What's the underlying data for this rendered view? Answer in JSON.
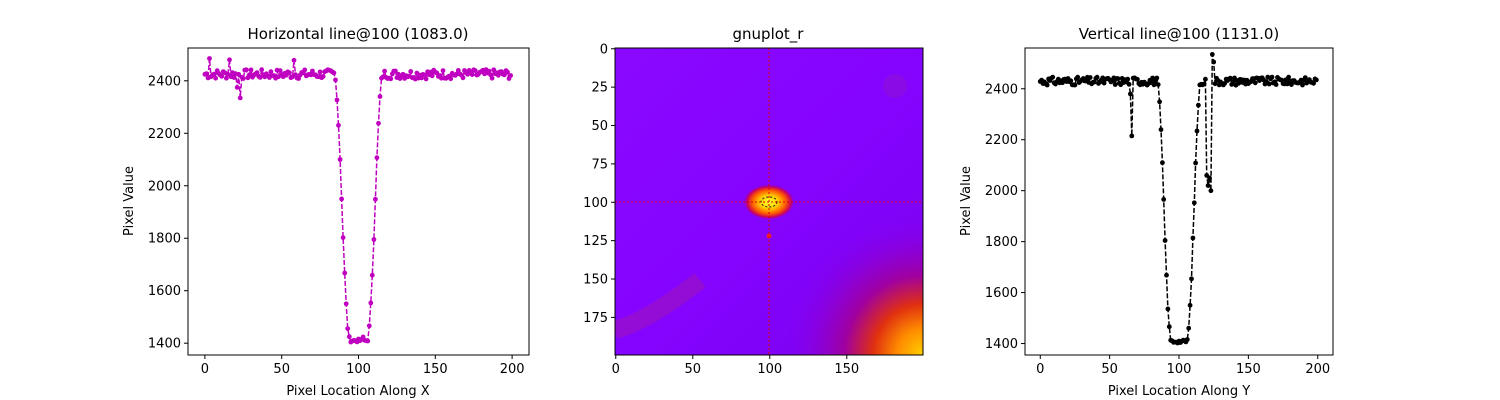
{
  "chart_data": [
    {
      "type": "line",
      "title": "Horizontal line@100 (1083.0)",
      "xlabel": "Pixel Location Along X",
      "ylabel": "Pixel Value",
      "xlim": [
        -11,
        211
      ],
      "ylim": [
        1355,
        2525
      ],
      "xticks": [
        0,
        50,
        100,
        150,
        200
      ],
      "yticks": [
        1400,
        1600,
        1800,
        2000,
        2200,
        2400
      ],
      "color": "#c000c0",
      "linestyle": "dashed",
      "marker": "dot",
      "profile": {
        "baseline": 2425,
        "noise": 18,
        "dip_center": 100,
        "dip_min": 1410,
        "dip_halfwidth": 10,
        "outliers": [
          [
            3,
            2485
          ],
          [
            16,
            2480
          ],
          [
            21,
            2375
          ],
          [
            23,
            2335
          ],
          [
            58,
            2478
          ],
          [
            103,
            1424
          ]
        ]
      },
      "series": [
        {
          "name": "",
          "x": [
            0,
            20,
            40,
            60,
            80,
            85,
            88,
            90,
            92,
            94,
            96,
            98,
            100,
            102,
            104,
            106,
            108,
            110,
            112,
            114,
            116,
            120,
            140,
            160,
            180,
            199
          ],
          "values": [
            2430,
            2420,
            2430,
            2425,
            2425,
            2420,
            2330,
            2050,
            1780,
            1560,
            1440,
            1415,
            1410,
            1410,
            1420,
            1520,
            1780,
            2030,
            2270,
            2380,
            2420,
            2430,
            2420,
            2410,
            2420,
            2415
          ]
        }
      ]
    },
    {
      "type": "heatmap",
      "title": "gnuplot_r",
      "colormap": "gnuplot_r",
      "xlim": [
        0,
        199
      ],
      "ylim": [
        199,
        0
      ],
      "xticks": [
        0,
        50,
        100,
        150
      ],
      "yticks": [
        0,
        25,
        50,
        75,
        100,
        125,
        150,
        175
      ],
      "crosshair": {
        "x": 100,
        "y": 100,
        "color": "#dd0000"
      },
      "hotspot": {
        "x": 100,
        "y": 100
      },
      "features": "bright ellipse centered at (100,100), warm glow in bottom-right corner, faint diagonal ring in lower-left"
    },
    {
      "type": "line",
      "title": "Vertical line@100 (1131.0)",
      "xlabel": "Pixel Location Along Y",
      "ylabel": "Pixel Value",
      "xlim": [
        -11,
        211
      ],
      "ylim": [
        1355,
        2560
      ],
      "xticks": [
        0,
        50,
        100,
        150,
        200
      ],
      "yticks": [
        1400,
        1600,
        1800,
        2000,
        2200,
        2400
      ],
      "color": "#000000",
      "linestyle": "dashed",
      "marker": "dot",
      "profile": {
        "baseline": 2430,
        "noise": 16,
        "dip_center": 100,
        "dip_min": 1408,
        "dip_halfwidth": 10,
        "outliers": [
          [
            66,
            2215
          ],
          [
            65,
            2380
          ],
          [
            120,
            2060
          ],
          [
            121,
            2020
          ],
          [
            122,
            2050
          ],
          [
            123,
            2000
          ],
          [
            124,
            2535
          ],
          [
            125,
            2505
          ]
        ]
      },
      "series": [
        {
          "name": "",
          "x": [
            0,
            20,
            40,
            60,
            65,
            66,
            68,
            80,
            88,
            90,
            92,
            94,
            96,
            98,
            100,
            102,
            104,
            106,
            108,
            110,
            112,
            114,
            118,
            120,
            122,
            124,
            126,
            140,
            160,
            180,
            199
          ],
          "values": [
            2460,
            2455,
            2430,
            2430,
            2380,
            2215,
            2420,
            2430,
            2410,
            2280,
            1960,
            1600,
            1480,
            1420,
            1408,
            1410,
            1450,
            1600,
            1960,
            2230,
            2350,
            2420,
            2470,
            2060,
            2020,
            2535,
            2440,
            2420,
            2410,
            2415,
            2455
          ]
        }
      ]
    }
  ]
}
